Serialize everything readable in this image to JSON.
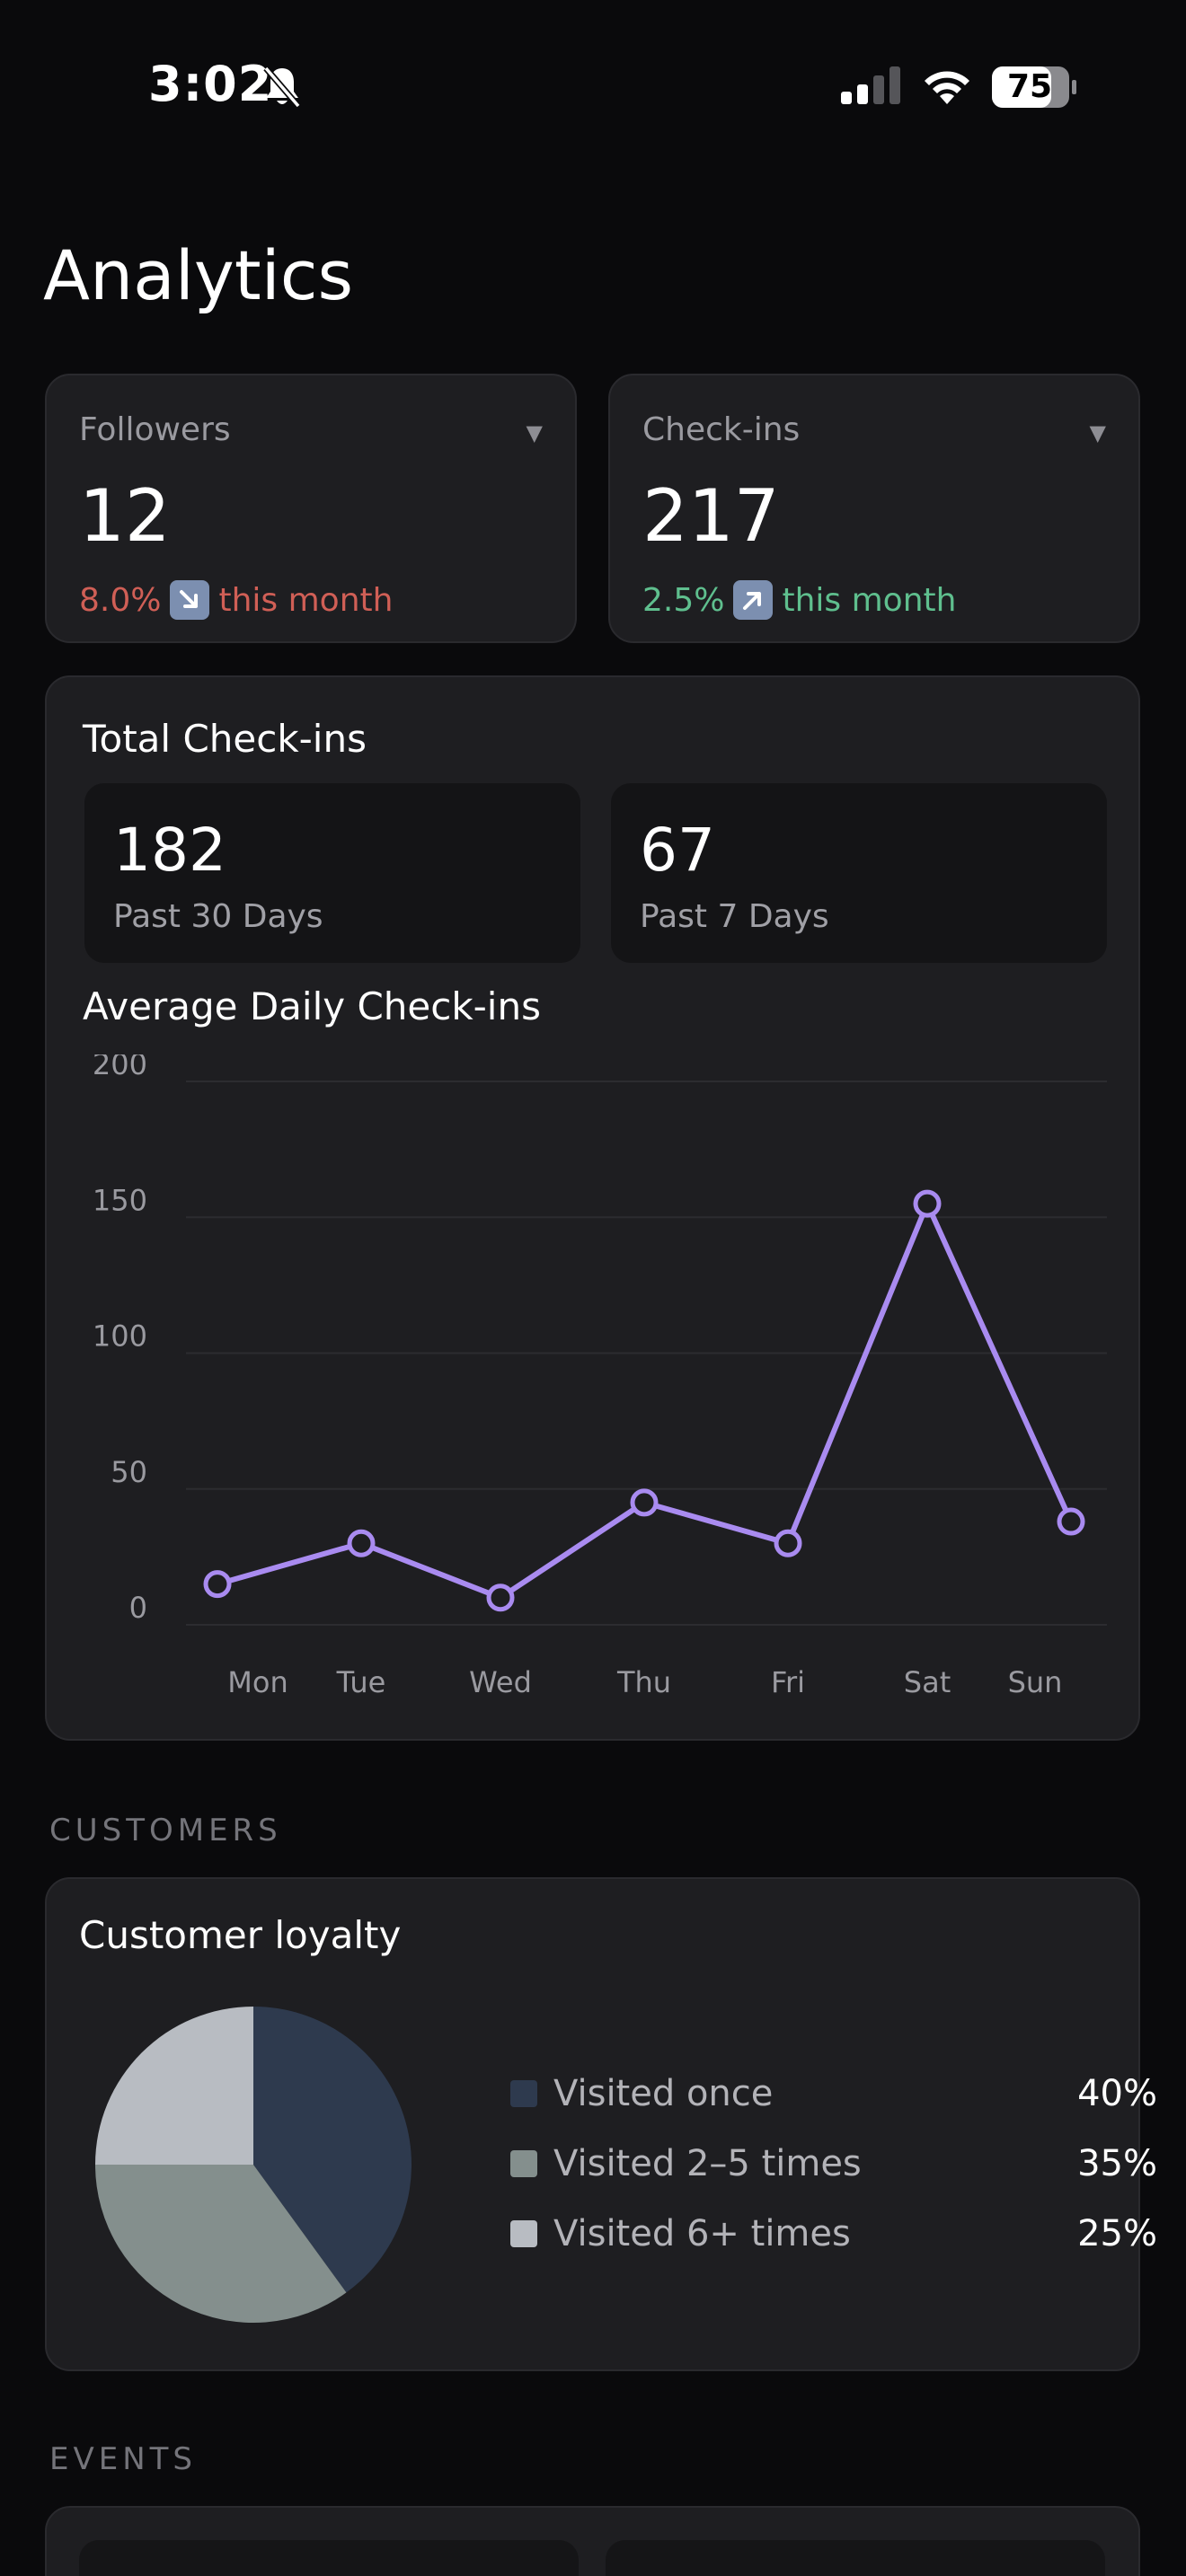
{
  "status_bar": {
    "time": "3:02",
    "battery": "75",
    "icons": [
      "bell-slash-icon",
      "cellular-signal-icon",
      "wifi-icon",
      "battery-icon"
    ]
  },
  "page": {
    "title": "Analytics"
  },
  "stats": [
    {
      "label": "Followers",
      "value": "12",
      "change": "8.0%",
      "direction": "down",
      "period": "this month",
      "color": "#d05f56"
    },
    {
      "label": "Check-ins",
      "value": "217",
      "change": "2.5%",
      "direction": "up",
      "period": "this month",
      "color": "#5fbf8e"
    }
  ],
  "total_checkins": {
    "title": "Total Check-ins",
    "boxes": [
      {
        "value": "182",
        "label": "Past 30 Days"
      },
      {
        "value": "67",
        "label": "Past 7 Days"
      }
    ]
  },
  "chart_data": {
    "type": "line",
    "title": "Average Daily Check-ins",
    "categories": [
      "Mon",
      "Tue",
      "Wed",
      "Thu",
      "Fri",
      "Sat",
      "Sun"
    ],
    "values": [
      15,
      30,
      10,
      45,
      30,
      155,
      38
    ],
    "yticks": [
      0,
      50,
      100,
      150,
      200
    ],
    "ylim": [
      0,
      200
    ],
    "color": "#a98bf0",
    "grid": true
  },
  "customers": {
    "header": "CUSTOMERS",
    "card_title": "Customer loyalty",
    "chart_data": {
      "type": "pie",
      "labels": [
        "Visited once",
        "Visited 2–5 times",
        "Visited 6+ times"
      ],
      "values": [
        40,
        35,
        25
      ],
      "display": [
        "40%",
        "35%",
        "25%"
      ],
      "colors": [
        "#2e3a4e",
        "#848f8d",
        "#b8bcc2"
      ]
    }
  },
  "events": {
    "header": "EVENTS"
  }
}
